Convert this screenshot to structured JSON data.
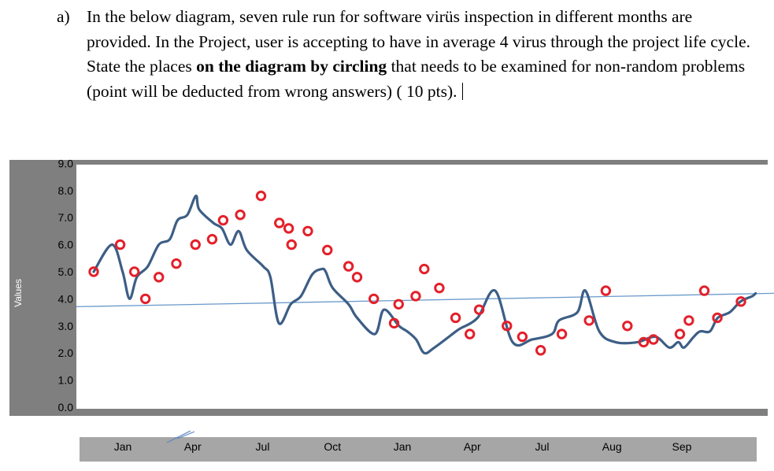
{
  "question": {
    "letter": "a)",
    "text_before": "In the below diagram, seven rule run for software virüs inspection in different months are provided. In the Project, user is accepting to have in average 4 virus through the project life cycle.  State the places ",
    "text_bold": "on the diagram by circling",
    "text_after": " that needs to be examined for non-random problems (point will be deducted from wrong answers) ( 10 pts)."
  },
  "chart_data": {
    "type": "line",
    "ylabel": "Values",
    "xlabel": "",
    "ylim": [
      0,
      9
    ],
    "yticks": [
      "0.0",
      "1.0",
      "2.0",
      "3.0",
      "4.0",
      "5.0",
      "6.0",
      "7.0",
      "8.0",
      "9.0"
    ],
    "categories": [
      "Jan",
      "Apr",
      "Jul",
      "Oct",
      "Jan",
      "Apr",
      "Jul",
      "Aug",
      "Sep"
    ],
    "center_line": 4.0,
    "series": [
      {
        "x": [
          0.0,
          0.45,
          0.71,
          0.88,
          1.06,
          1.33,
          1.6,
          1.87,
          2.06,
          2.3,
          2.51,
          2.59,
          2.94,
          3.15,
          3.36,
          3.56,
          3.76,
          4.16,
          4.34,
          4.55,
          4.84,
          5.09,
          5.37,
          5.6,
          5.7,
          5.87,
          6.26,
          6.47,
          6.91,
          7.13,
          7.5,
          7.7,
          7.92,
          8.12,
          8.37,
          8.9,
          9.0,
          9.43,
          9.86,
          10.29,
          10.77,
          11.26,
          11.43,
          11.88,
          12.08,
          12.42,
          12.82,
          13.36,
          13.8,
          14.14,
          14.36,
          14.5,
          14.74,
          14.9,
          15.14,
          15.33,
          15.62,
          15.89,
          16.18,
          16.26
        ],
        "values": [
          5.0,
          6.0,
          5.0,
          4.0,
          4.8,
          5.2,
          6.0,
          6.2,
          6.9,
          7.1,
          7.8,
          7.3,
          6.8,
          6.6,
          6.0,
          6.5,
          5.8,
          5.2,
          4.8,
          3.1,
          3.8,
          4.1,
          4.9,
          5.1,
          5.0,
          4.4,
          3.8,
          3.3,
          2.7,
          3.6,
          3.0,
          2.8,
          2.5,
          2.0,
          2.2,
          2.8,
          2.9,
          3.3,
          4.3,
          2.4,
          2.5,
          2.7,
          3.2,
          3.5,
          4.3,
          2.8,
          2.4,
          2.4,
          2.6,
          2.2,
          2.4,
          2.2,
          2.6,
          2.8,
          2.8,
          3.3,
          3.5,
          3.9,
          4.1,
          4.2
        ]
      }
    ],
    "marked_points": {
      "x": [
        0.0,
        0.65,
        1.0,
        1.27,
        1.6,
        2.03,
        2.5,
        2.91,
        3.18,
        3.6,
        4.11,
        4.56,
        4.79,
        4.86,
        5.26,
        5.74,
        6.26,
        6.47,
        6.88,
        7.38,
        7.49,
        7.91,
        8.12,
        8.49,
        8.89,
        9.24,
        9.47,
        10.15,
        10.53,
        10.98,
        11.5,
        12.17,
        12.58,
        13.11,
        13.51,
        13.75,
        14.4,
        14.62,
        15.0,
        15.32,
        15.9
      ],
      "values": [
        5.0,
        6.0,
        5.0,
        4.0,
        4.8,
        5.3,
        6.0,
        6.2,
        6.9,
        7.1,
        7.8,
        6.8,
        6.6,
        6.0,
        6.5,
        5.8,
        5.2,
        4.8,
        4.0,
        3.1,
        3.8,
        4.1,
        5.1,
        4.4,
        3.3,
        2.7,
        3.6,
        3.0,
        2.6,
        2.1,
        2.7,
        3.2,
        4.3,
        3.0,
        2.4,
        2.5,
        2.7,
        3.2,
        4.3,
        3.3,
        3.9
      ]
    }
  }
}
